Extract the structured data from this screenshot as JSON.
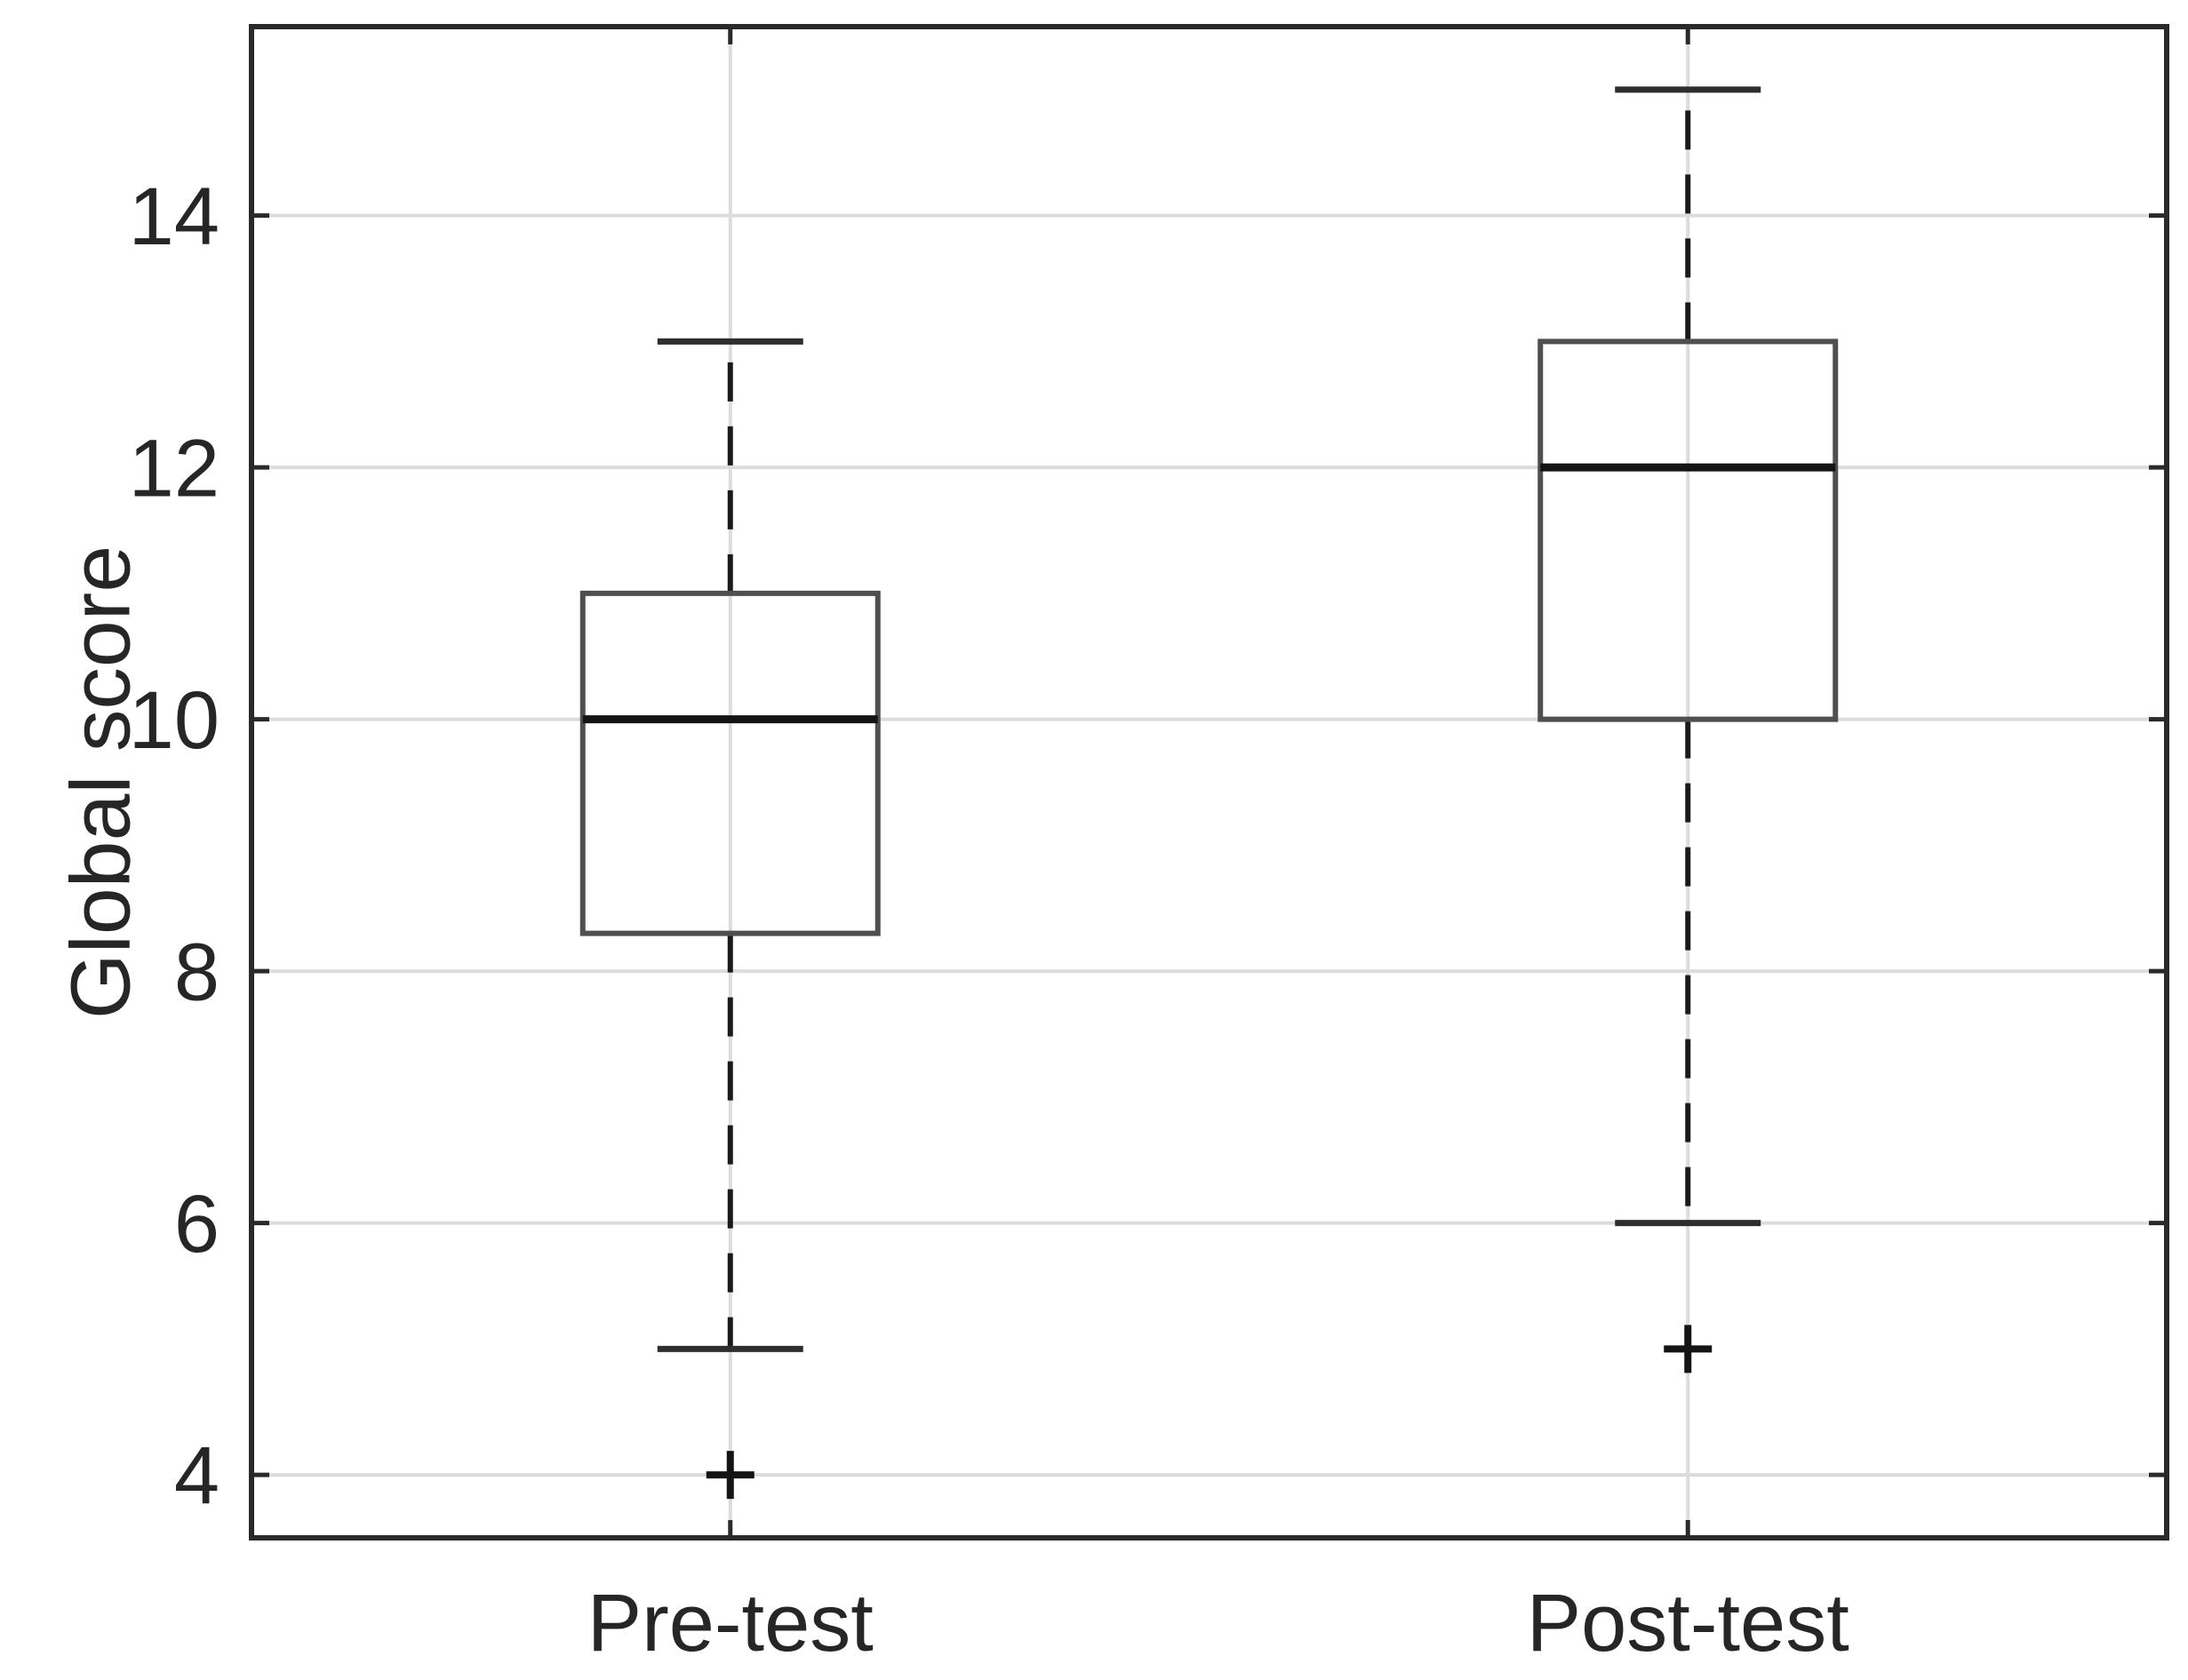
{
  "page": {
    "background": "#ffffff"
  },
  "chart_data": {
    "type": "boxplot",
    "title": "",
    "xlabel": "",
    "ylabel": "Global score",
    "categories": [
      "Pre-test",
      "Post-test"
    ],
    "ylim": [
      3.5,
      15.5
    ],
    "y_ticks": [
      4,
      6,
      8,
      10,
      12,
      14
    ],
    "grid": true,
    "grid_style": "horizontal lines at y ticks and vertical lines at category centers",
    "series": [
      {
        "name": "Pre-test",
        "whisker_low": 5,
        "q1": 8.3,
        "median": 10,
        "q3": 11,
        "whisker_high": 13,
        "outliers": [
          4
        ]
      },
      {
        "name": "Post-test",
        "whisker_low": 6,
        "q1": 10,
        "median": 12,
        "q3": 13,
        "whisker_high": 15,
        "outliers": [
          5
        ]
      }
    ],
    "style": {
      "background": "#ffffff",
      "axis_color": "#2a2a2a",
      "grid_color": "#dcdcdc",
      "box_edge_color": "#4f4f4f",
      "median_color": "#141414",
      "whisker_color": "#1a1a1a",
      "cap_color": "#2e2e2e",
      "outlier_color": "#141414",
      "text_color": "#262626"
    }
  }
}
